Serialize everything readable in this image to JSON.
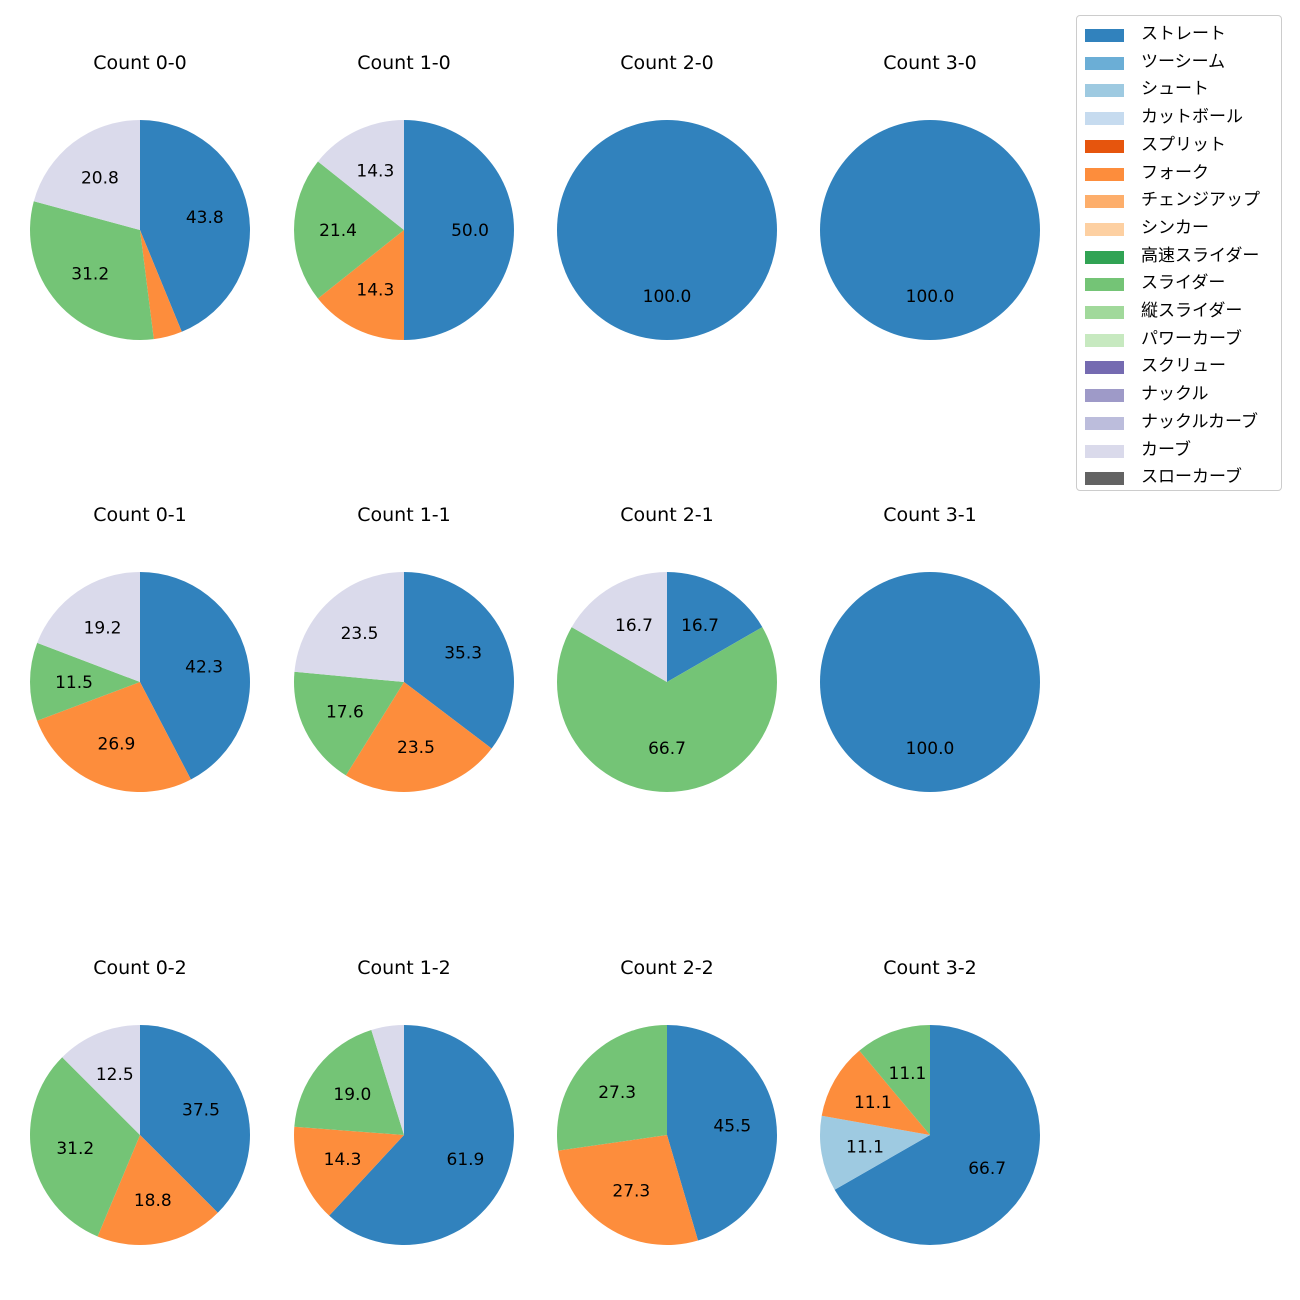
{
  "chart_data": {
    "type": "pie",
    "legend": [
      {
        "label": "ストレート",
        "color": "#3182bd"
      },
      {
        "label": "ツーシーム",
        "color": "#6baed6"
      },
      {
        "label": "シュート",
        "color": "#9ecae1"
      },
      {
        "label": "カットボール",
        "color": "#c6dbef"
      },
      {
        "label": "スプリット",
        "color": "#e6550d"
      },
      {
        "label": "フォーク",
        "color": "#fd8d3c"
      },
      {
        "label": "チェンジアップ",
        "color": "#fdae6b"
      },
      {
        "label": "シンカー",
        "color": "#fdd0a2"
      },
      {
        "label": "高速スライダー",
        "color": "#31a354"
      },
      {
        "label": "スライダー",
        "color": "#74c476"
      },
      {
        "label": "縦スライダー",
        "color": "#a1d99b"
      },
      {
        "label": "パワーカーブ",
        "color": "#c7e9c0"
      },
      {
        "label": "スクリュー",
        "color": "#756bb1"
      },
      {
        "label": "ナックル",
        "color": "#9e9ac8"
      },
      {
        "label": "ナックルカーブ",
        "color": "#bcbddc"
      },
      {
        "label": "カーブ",
        "color": "#dadaeb"
      },
      {
        "label": "スローカーブ",
        "color": "#636363"
      }
    ],
    "legend_position": "top-right",
    "pies": [
      {
        "title": "Count 0-0",
        "slices": [
          {
            "pitch": "ストレート",
            "value": 43.8
          },
          {
            "pitch": "フォーク",
            "value": 4.2
          },
          {
            "pitch": "スライダー",
            "value": 31.2
          },
          {
            "pitch": "カーブ",
            "value": 20.8
          }
        ]
      },
      {
        "title": "Count 1-0",
        "slices": [
          {
            "pitch": "ストレート",
            "value": 50.0
          },
          {
            "pitch": "フォーク",
            "value": 14.3
          },
          {
            "pitch": "スライダー",
            "value": 21.4
          },
          {
            "pitch": "カーブ",
            "value": 14.3
          }
        ]
      },
      {
        "title": "Count 2-0",
        "slices": [
          {
            "pitch": "ストレート",
            "value": 100.0
          }
        ]
      },
      {
        "title": "Count 3-0",
        "slices": [
          {
            "pitch": "ストレート",
            "value": 100.0
          }
        ]
      },
      {
        "title": "Count 0-1",
        "slices": [
          {
            "pitch": "ストレート",
            "value": 42.3
          },
          {
            "pitch": "フォーク",
            "value": 26.9
          },
          {
            "pitch": "スライダー",
            "value": 11.5
          },
          {
            "pitch": "カーブ",
            "value": 19.2
          }
        ]
      },
      {
        "title": "Count 1-1",
        "slices": [
          {
            "pitch": "ストレート",
            "value": 35.3
          },
          {
            "pitch": "フォーク",
            "value": 23.5
          },
          {
            "pitch": "スライダー",
            "value": 17.6
          },
          {
            "pitch": "カーブ",
            "value": 23.5
          }
        ]
      },
      {
        "title": "Count 2-1",
        "slices": [
          {
            "pitch": "ストレート",
            "value": 16.7
          },
          {
            "pitch": "スライダー",
            "value": 66.7
          },
          {
            "pitch": "カーブ",
            "value": 16.7
          }
        ]
      },
      {
        "title": "Count 3-1",
        "slices": [
          {
            "pitch": "ストレート",
            "value": 100.0
          }
        ]
      },
      {
        "title": "Count 0-2",
        "slices": [
          {
            "pitch": "ストレート",
            "value": 37.5
          },
          {
            "pitch": "フォーク",
            "value": 18.8
          },
          {
            "pitch": "スライダー",
            "value": 31.2
          },
          {
            "pitch": "カーブ",
            "value": 12.5
          }
        ]
      },
      {
        "title": "Count 1-2",
        "slices": [
          {
            "pitch": "ストレート",
            "value": 61.9
          },
          {
            "pitch": "フォーク",
            "value": 14.3
          },
          {
            "pitch": "スライダー",
            "value": 19.0
          },
          {
            "pitch": "カーブ",
            "value": 4.8
          }
        ]
      },
      {
        "title": "Count 2-2",
        "slices": [
          {
            "pitch": "ストレート",
            "value": 45.5
          },
          {
            "pitch": "フォーク",
            "value": 27.3
          },
          {
            "pitch": "スライダー",
            "value": 27.3
          }
        ]
      },
      {
        "title": "Count 3-2",
        "slices": [
          {
            "pitch": "ストレート",
            "value": 66.7
          },
          {
            "pitch": "シュート",
            "value": 11.1
          },
          {
            "pitch": "フォーク",
            "value": 11.1
          },
          {
            "pitch": "スライダー",
            "value": 11.1
          }
        ]
      }
    ]
  }
}
